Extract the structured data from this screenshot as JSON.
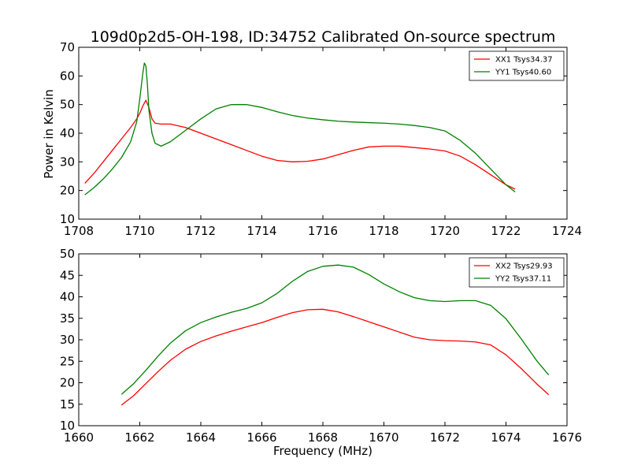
{
  "chart_data": [
    {
      "type": "line",
      "title": "109d0p2d5-OH-198, ID:34752 Calibrated On-source spectrum",
      "xlabel": "",
      "ylabel": "Power in Kelvin",
      "xlim": [
        1708,
        1724
      ],
      "ylim": [
        10,
        70
      ],
      "xticks": [
        1708,
        1710,
        1712,
        1714,
        1716,
        1718,
        1720,
        1722,
        1724
      ],
      "yticks": [
        10,
        20,
        30,
        40,
        50,
        60,
        70
      ],
      "legend_position": "top-right",
      "grid": false,
      "series": [
        {
          "name": "XX1 Tsys34.37",
          "color": "#ff0000",
          "x": [
            1708.2,
            1708.5,
            1708.8,
            1709.1,
            1709.4,
            1709.7,
            1709.9,
            1710.0,
            1710.1,
            1710.2,
            1710.3,
            1710.4,
            1710.5,
            1710.7,
            1711.0,
            1711.5,
            1712.0,
            1712.5,
            1713.0,
            1713.5,
            1714.0,
            1714.5,
            1715.0,
            1715.5,
            1716.0,
            1716.5,
            1717.0,
            1717.5,
            1718.0,
            1718.5,
            1719.0,
            1719.5,
            1720.0,
            1720.5,
            1721.0,
            1721.5,
            1722.0,
            1722.3
          ],
          "y": [
            22.5,
            26,
            30,
            34,
            38,
            42,
            45,
            47,
            49.5,
            51.5,
            49,
            45,
            43.5,
            43.2,
            43.2,
            42,
            40,
            38,
            36,
            34,
            32,
            30.5,
            30,
            30.2,
            31,
            32.5,
            34,
            35.2,
            35.5,
            35.5,
            35,
            34.5,
            33.8,
            32,
            29,
            25.5,
            22,
            20.5
          ]
        },
        {
          "name": "YY1 Tsys40.60",
          "color": "#008000",
          "x": [
            1708.2,
            1708.5,
            1708.8,
            1709.1,
            1709.4,
            1709.7,
            1709.9,
            1710.0,
            1710.1,
            1710.15,
            1710.2,
            1710.25,
            1710.3,
            1710.4,
            1710.5,
            1710.7,
            1711.0,
            1711.5,
            1712.0,
            1712.5,
            1713.0,
            1713.5,
            1714.0,
            1714.5,
            1715.0,
            1715.5,
            1716.0,
            1716.5,
            1717.0,
            1717.5,
            1718.0,
            1718.5,
            1719.0,
            1719.5,
            1720.0,
            1720.5,
            1721.0,
            1721.5,
            1722.0,
            1722.3
          ],
          "y": [
            18.5,
            21,
            24,
            27.5,
            31.5,
            37,
            44,
            52,
            61,
            64.5,
            63.5,
            57,
            48,
            40,
            36.5,
            35.5,
            37,
            41,
            45,
            48.5,
            50,
            50,
            49,
            47.5,
            46.2,
            45.3,
            44.7,
            44.2,
            43.9,
            43.7,
            43.5,
            43.2,
            42.7,
            42,
            40.8,
            37.5,
            33,
            27.5,
            22,
            19.5
          ]
        }
      ]
    },
    {
      "type": "line",
      "title": "",
      "xlabel": "Frequency (MHz)",
      "ylabel": "",
      "xlim": [
        1660,
        1676
      ],
      "ylim": [
        10,
        50
      ],
      "xticks": [
        1660,
        1662,
        1664,
        1666,
        1668,
        1670,
        1672,
        1674,
        1676
      ],
      "yticks": [
        10,
        15,
        20,
        25,
        30,
        35,
        40,
        45,
        50
      ],
      "legend_position": "top-right",
      "grid": false,
      "series": [
        {
          "name": "XX2 Tsys29.93",
          "color": "#ff0000",
          "x": [
            1661.4,
            1661.8,
            1662.2,
            1662.6,
            1663.0,
            1663.5,
            1664.0,
            1664.5,
            1665.0,
            1665.5,
            1666.0,
            1666.5,
            1667.0,
            1667.5,
            1668.0,
            1668.5,
            1669.0,
            1669.5,
            1670.0,
            1670.5,
            1671.0,
            1671.5,
            1672.0,
            1672.5,
            1673.0,
            1673.5,
            1674.0,
            1674.5,
            1675.0,
            1675.4
          ],
          "y": [
            14.8,
            17,
            19.8,
            22.6,
            25.2,
            27.8,
            29.6,
            30.9,
            32,
            33,
            34,
            35.2,
            36.3,
            37,
            37.1,
            36.5,
            35.4,
            34.2,
            33,
            31.8,
            30.6,
            30,
            29.8,
            29.7,
            29.5,
            28.8,
            26.5,
            23.3,
            19.8,
            17.2
          ]
        },
        {
          "name": "YY2 Tsys37.11",
          "color": "#008000",
          "x": [
            1661.4,
            1661.8,
            1662.2,
            1662.6,
            1663.0,
            1663.5,
            1664.0,
            1664.5,
            1665.0,
            1665.5,
            1666.0,
            1666.5,
            1667.0,
            1667.5,
            1668.0,
            1668.5,
            1669.0,
            1669.5,
            1670.0,
            1670.5,
            1671.0,
            1671.5,
            1672.0,
            1672.5,
            1673.0,
            1673.5,
            1674.0,
            1674.5,
            1675.0,
            1675.4
          ],
          "y": [
            17.3,
            19.8,
            22.9,
            26.2,
            29.2,
            32.1,
            34,
            35.3,
            36.4,
            37.3,
            38.6,
            40.8,
            43.6,
            45.9,
            47.1,
            47.4,
            46.9,
            45.2,
            43,
            41.2,
            39.8,
            39.1,
            38.9,
            39.1,
            39.1,
            38,
            34.9,
            30.2,
            25.2,
            21.8
          ]
        }
      ]
    }
  ]
}
